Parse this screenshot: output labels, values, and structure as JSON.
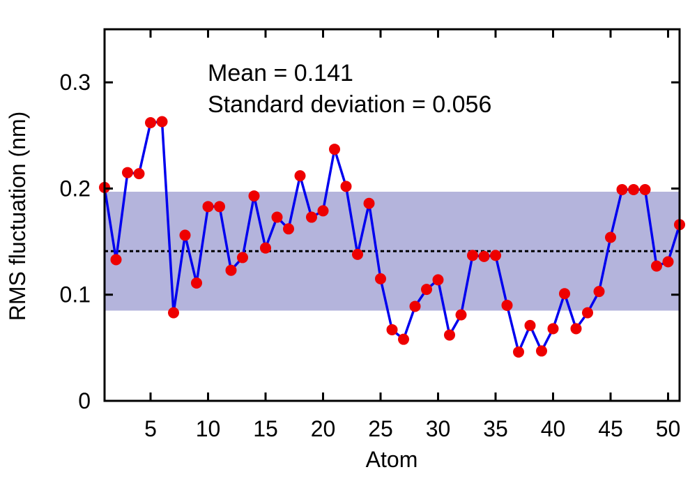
{
  "chart_data": {
    "type": "line",
    "title": "",
    "xlabel": "Atom",
    "ylabel": "RMS fluctuation (nm)",
    "xlim": [
      1,
      51
    ],
    "ylim": [
      0,
      0.35
    ],
    "xticks": [
      5,
      10,
      15,
      20,
      25,
      30,
      35,
      40,
      45,
      50
    ],
    "yticks": [
      0,
      0.1,
      0.2,
      0.3
    ],
    "ytick_labels": [
      "0",
      "0.1",
      "0.2",
      "0.3"
    ],
    "grid": false,
    "annotations": [
      "Mean = 0.141",
      "Standard deviation = 0.056"
    ],
    "mean": 0.141,
    "std": 0.056,
    "band": [
      0.085,
      0.197
    ],
    "colors": {
      "line": "#0000ee",
      "marker": "#ee0000",
      "band": "#b4b4dc",
      "mean_line": "#000000"
    },
    "x": [
      1,
      2,
      3,
      4,
      5,
      6,
      7,
      8,
      9,
      10,
      11,
      12,
      13,
      14,
      15,
      16,
      17,
      18,
      19,
      20,
      21,
      22,
      23,
      24,
      25,
      26,
      27,
      28,
      29,
      30,
      31,
      32,
      33,
      34,
      35,
      36,
      37,
      38,
      39,
      40,
      41,
      42,
      43,
      44,
      45,
      46,
      47,
      48,
      49,
      50,
      51
    ],
    "values": [
      0.201,
      0.133,
      0.215,
      0.214,
      0.262,
      0.263,
      0.083,
      0.156,
      0.111,
      0.183,
      0.183,
      0.123,
      0.135,
      0.193,
      0.144,
      0.173,
      0.162,
      0.212,
      0.173,
      0.179,
      0.237,
      0.202,
      0.138,
      0.186,
      0.115,
      0.067,
      0.058,
      0.089,
      0.105,
      0.114,
      0.062,
      0.081,
      0.137,
      0.136,
      0.137,
      0.09,
      0.046,
      0.071,
      0.047,
      0.068,
      0.101,
      0.068,
      0.083,
      0.103,
      0.154,
      0.199,
      0.199,
      0.199,
      0.127,
      0.131,
      0.166
    ]
  }
}
